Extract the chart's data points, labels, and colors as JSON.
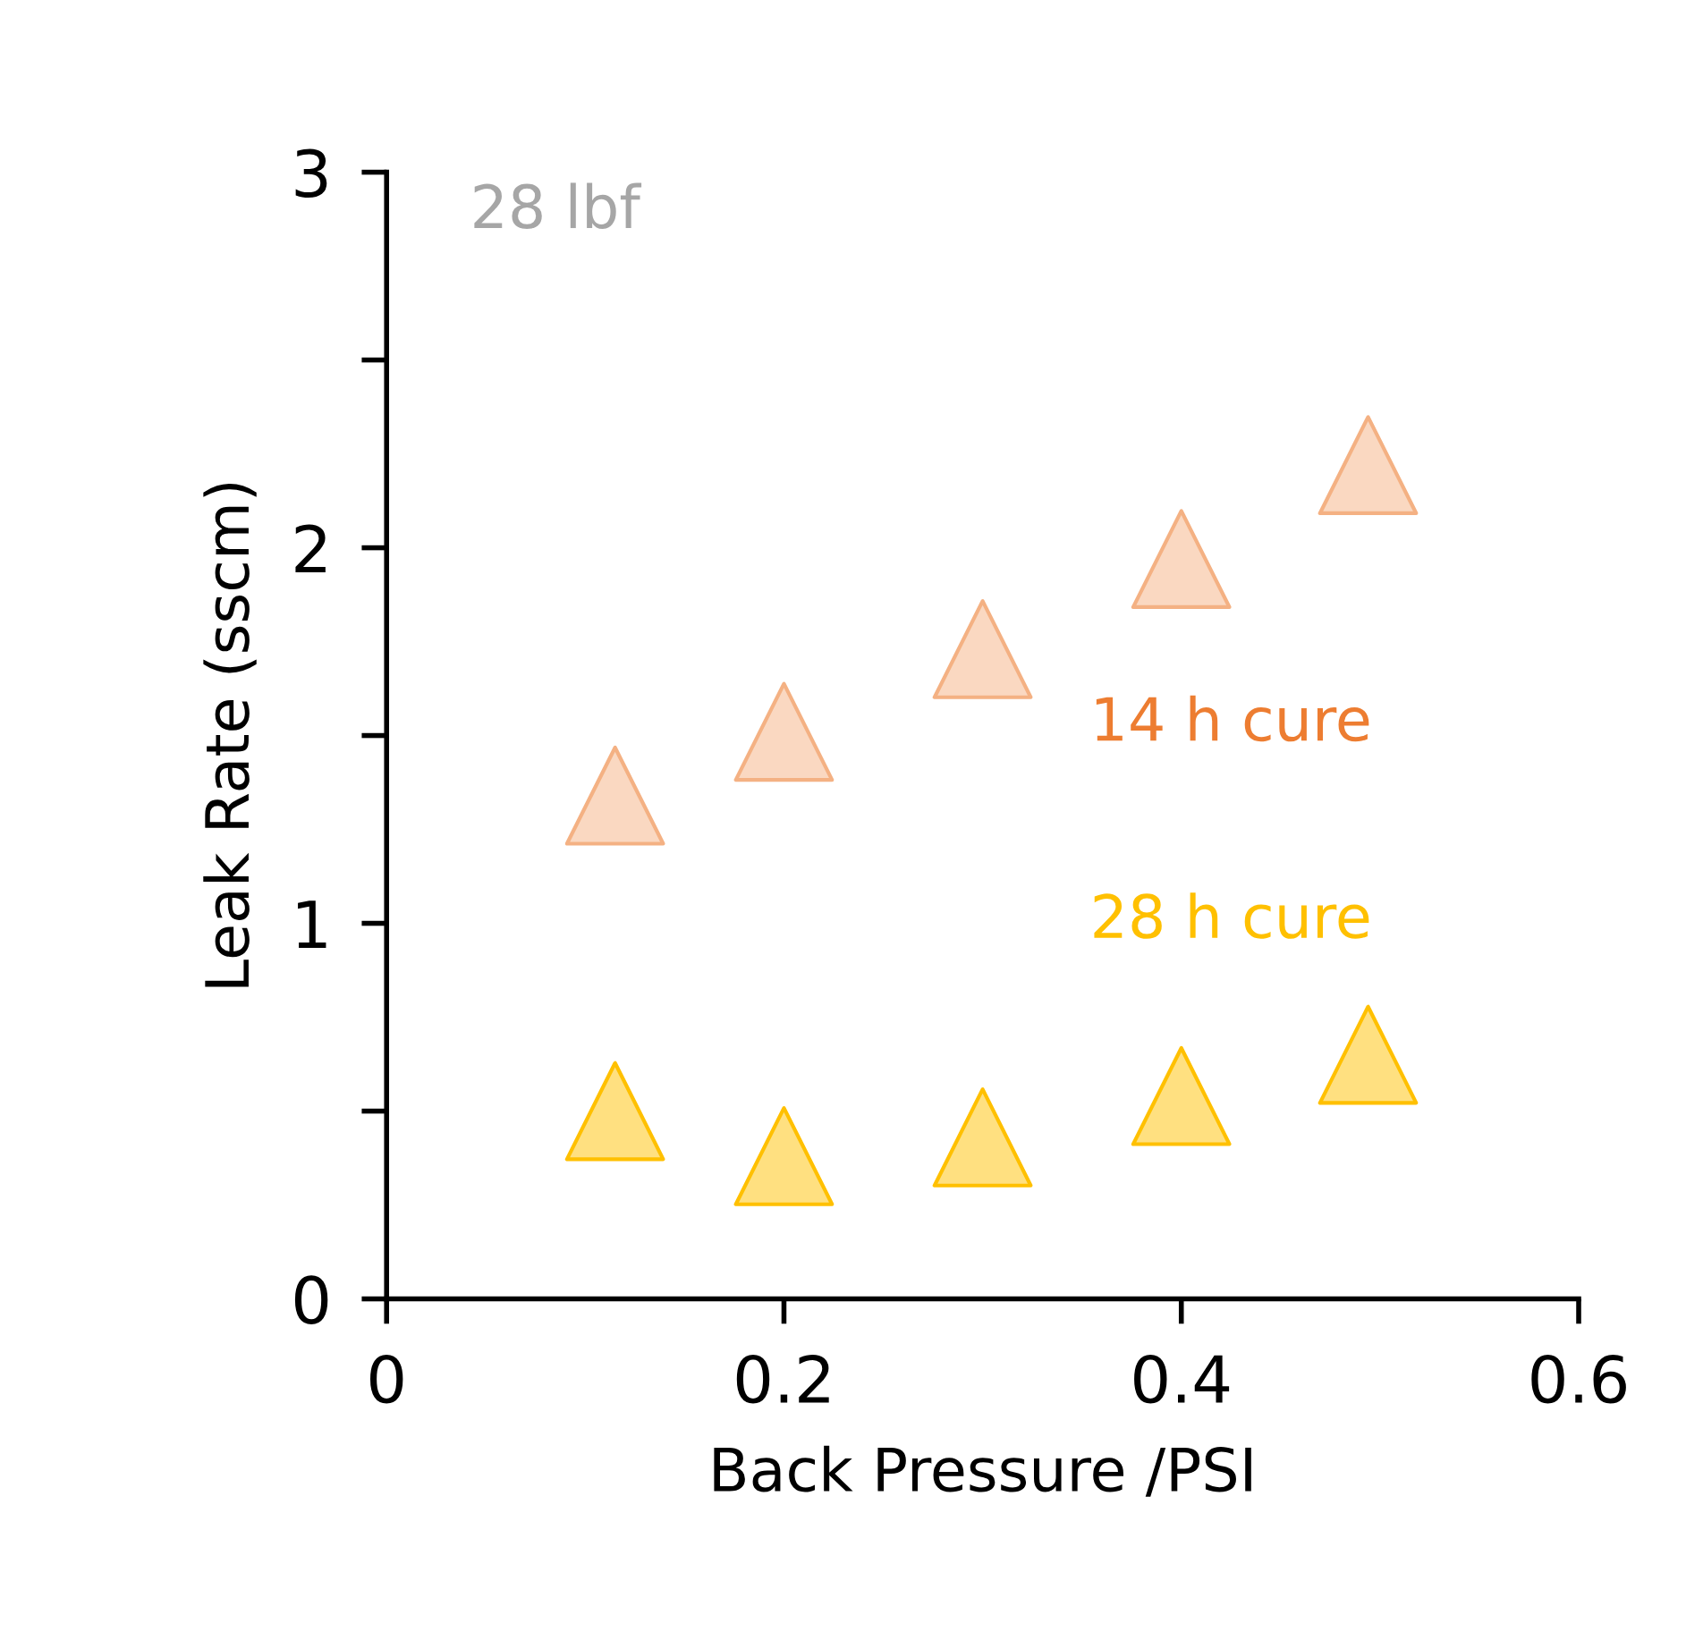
{
  "chart_data": {
    "type": "scatter",
    "xlabel": "Back Pressure /PSI",
    "ylabel": "Leak Rate (sscm)",
    "annotations": [
      "28 lbf"
    ],
    "series": [
      {
        "name": "14 h cure",
        "color": "#f4b183",
        "x": [
          0.115,
          0.2,
          0.3,
          0.4,
          0.494
        ],
        "values": [
          1.34,
          1.51,
          1.73,
          1.97,
          2.22
        ]
      },
      {
        "name": "28 h cure",
        "color": "#ffc000",
        "x": [
          0.115,
          0.2,
          0.3,
          0.4,
          0.494
        ],
        "values": [
          0.5,
          0.38,
          0.43,
          0.54,
          0.65
        ]
      }
    ],
    "xlim": [
      0,
      0.6
    ],
    "xticks": [
      0,
      0.2,
      0.4,
      0.6
    ],
    "ylim": [
      0,
      3
    ],
    "yticks": [
      0,
      {
        "value": 0.5,
        "label": null
      },
      1,
      {
        "value": 1.5,
        "label": null
      },
      2,
      {
        "value": 2.5,
        "label": null
      },
      3
    ],
    "marker": "triangle",
    "grid": false,
    "legend": false
  }
}
